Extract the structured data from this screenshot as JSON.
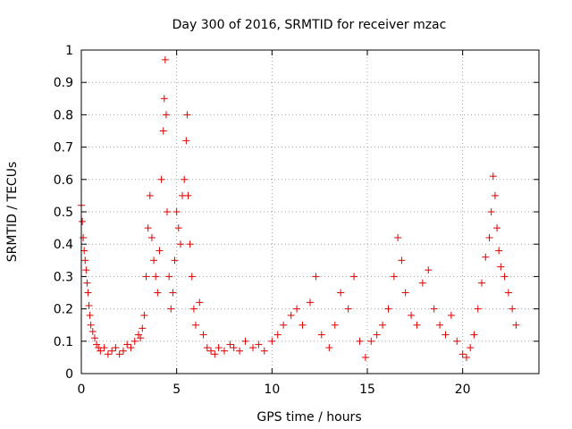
{
  "chart_data": {
    "type": "scatter",
    "title": "Day 300 of 2016, SRMTID for receiver mzac",
    "xlabel": "GPS time / hours",
    "ylabel": "SRMTID / TECUs",
    "xlim": [
      0,
      24
    ],
    "ylim": [
      0,
      1
    ],
    "x_ticks": [
      0,
      5,
      10,
      15,
      20
    ],
    "x_tick_labels": [
      "0",
      "5",
      "10",
      "15",
      "20"
    ],
    "y_ticks": [
      0,
      0.1,
      0.2,
      0.3,
      0.4,
      0.5,
      0.6,
      0.7,
      0.8,
      0.9,
      1
    ],
    "y_tick_labels": [
      "0",
      "0.1",
      "0.2",
      "0.3",
      "0.4",
      "0.5",
      "0.6",
      "0.7",
      "0.8",
      "0.9",
      "1"
    ],
    "grid": true,
    "marker": "+",
    "series": [
      {
        "name": "SRMTID",
        "color": "#e00000",
        "x": [
          0.0,
          0.05,
          0.1,
          0.15,
          0.2,
          0.25,
          0.3,
          0.35,
          0.4,
          0.45,
          0.5,
          0.6,
          0.7,
          0.8,
          0.9,
          1.0,
          1.2,
          1.4,
          1.6,
          1.8,
          2.0,
          2.2,
          2.4,
          2.6,
          2.8,
          3.0,
          3.1,
          3.2,
          3.3,
          3.4,
          3.5,
          3.6,
          3.7,
          3.8,
          3.9,
          4.0,
          4.1,
          4.2,
          4.3,
          4.35,
          4.4,
          4.45,
          4.5,
          4.6,
          4.7,
          4.8,
          4.9,
          5.0,
          5.1,
          5.2,
          5.3,
          5.4,
          5.5,
          5.55,
          5.6,
          5.7,
          5.8,
          5.9,
          6.0,
          6.2,
          6.4,
          6.6,
          6.8,
          7.0,
          7.2,
          7.5,
          7.8,
          8.0,
          8.3,
          8.6,
          9.0,
          9.3,
          9.6,
          10.0,
          10.3,
          10.6,
          11.0,
          11.3,
          11.6,
          12.0,
          12.3,
          12.6,
          13.0,
          13.3,
          13.6,
          14.0,
          14.3,
          14.6,
          14.9,
          15.2,
          15.5,
          15.8,
          16.1,
          16.4,
          16.6,
          16.8,
          17.0,
          17.3,
          17.6,
          17.9,
          18.2,
          18.5,
          18.8,
          19.1,
          19.4,
          19.7,
          20.0,
          20.2,
          20.4,
          20.6,
          20.8,
          21.0,
          21.2,
          21.4,
          21.5,
          21.6,
          21.7,
          21.8,
          21.9,
          22.0,
          22.2,
          22.4,
          22.6,
          22.8
        ],
        "values": [
          0.52,
          0.47,
          0.42,
          0.38,
          0.35,
          0.32,
          0.28,
          0.25,
          0.21,
          0.18,
          0.15,
          0.13,
          0.11,
          0.09,
          0.08,
          0.07,
          0.08,
          0.06,
          0.07,
          0.08,
          0.06,
          0.07,
          0.09,
          0.08,
          0.1,
          0.12,
          0.11,
          0.14,
          0.18,
          0.3,
          0.45,
          0.55,
          0.42,
          0.35,
          0.3,
          0.25,
          0.38,
          0.6,
          0.75,
          0.85,
          0.97,
          0.8,
          0.5,
          0.3,
          0.2,
          0.25,
          0.35,
          0.5,
          0.45,
          0.4,
          0.55,
          0.6,
          0.72,
          0.8,
          0.55,
          0.4,
          0.3,
          0.2,
          0.15,
          0.22,
          0.12,
          0.08,
          0.07,
          0.06,
          0.08,
          0.07,
          0.09,
          0.08,
          0.07,
          0.1,
          0.08,
          0.09,
          0.07,
          0.1,
          0.12,
          0.15,
          0.18,
          0.2,
          0.15,
          0.22,
          0.3,
          0.12,
          0.08,
          0.15,
          0.25,
          0.2,
          0.3,
          0.1,
          0.05,
          0.1,
          0.12,
          0.15,
          0.2,
          0.3,
          0.42,
          0.35,
          0.25,
          0.18,
          0.15,
          0.28,
          0.32,
          0.2,
          0.15,
          0.12,
          0.18,
          0.1,
          0.06,
          0.05,
          0.08,
          0.12,
          0.2,
          0.28,
          0.36,
          0.42,
          0.5,
          0.61,
          0.55,
          0.45,
          0.38,
          0.33,
          0.3,
          0.25,
          0.2,
          0.15
        ]
      }
    ]
  }
}
